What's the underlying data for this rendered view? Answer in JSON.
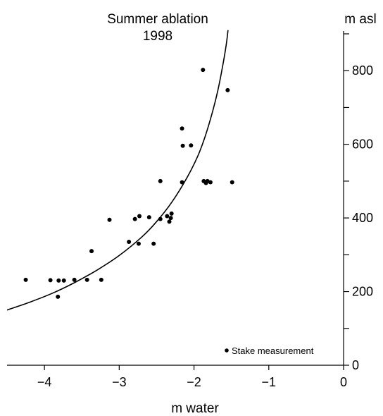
{
  "chart_data": {
    "type": "scatter",
    "title": "Summer ablation",
    "subtitle": "1998",
    "xlabel": "m water",
    "ylabel": "m asl",
    "xlim": [
      -4.5,
      0
    ],
    "ylim": [
      0,
      900
    ],
    "x_ticks": [
      -4,
      -3,
      -2,
      -1,
      0
    ],
    "y_ticks": [
      0,
      200,
      400,
      600,
      800
    ],
    "y_minor_ticks": [
      100,
      300,
      500,
      700,
      900
    ],
    "grid": false,
    "legend": {
      "placement": "bottom-right",
      "label": "Stake measurement",
      "marker": "dot"
    },
    "marker_color": "#000000",
    "series": [
      {
        "name": "Stake measurement",
        "points": [
          {
            "x": -4.25,
            "y": 232
          },
          {
            "x": -3.92,
            "y": 231
          },
          {
            "x": -3.81,
            "y": 230
          },
          {
            "x": -3.74,
            "y": 230
          },
          {
            "x": -3.6,
            "y": 232
          },
          {
            "x": -3.43,
            "y": 232
          },
          {
            "x": -3.24,
            "y": 232
          },
          {
            "x": -3.82,
            "y": 186
          },
          {
            "x": -3.37,
            "y": 310
          },
          {
            "x": -3.13,
            "y": 395
          },
          {
            "x": -2.87,
            "y": 335
          },
          {
            "x": -2.79,
            "y": 397
          },
          {
            "x": -2.73,
            "y": 405
          },
          {
            "x": -2.74,
            "y": 330
          },
          {
            "x": -2.6,
            "y": 402
          },
          {
            "x": -2.54,
            "y": 330
          },
          {
            "x": -2.45,
            "y": 397
          },
          {
            "x": -2.45,
            "y": 500
          },
          {
            "x": -2.36,
            "y": 405
          },
          {
            "x": -2.33,
            "y": 390
          },
          {
            "x": -2.3,
            "y": 412
          },
          {
            "x": -2.31,
            "y": 400
          },
          {
            "x": -2.16,
            "y": 643
          },
          {
            "x": -2.15,
            "y": 596
          },
          {
            "x": -2.16,
            "y": 497
          },
          {
            "x": -2.04,
            "y": 597
          },
          {
            "x": -1.88,
            "y": 802
          },
          {
            "x": -1.87,
            "y": 500
          },
          {
            "x": -1.84,
            "y": 495
          },
          {
            "x": -1.82,
            "y": 500
          },
          {
            "x": -1.78,
            "y": 497
          },
          {
            "x": -1.55,
            "y": 747
          },
          {
            "x": -1.49,
            "y": 497
          }
        ]
      }
    ],
    "fit_curve": {
      "type": "curve",
      "points": [
        {
          "x": -4.5,
          "y": 150
        },
        {
          "x": -4.2,
          "y": 171
        },
        {
          "x": -3.9,
          "y": 195
        },
        {
          "x": -3.6,
          "y": 224
        },
        {
          "x": -3.3,
          "y": 258
        },
        {
          "x": -3.0,
          "y": 298
        },
        {
          "x": -2.7,
          "y": 348
        },
        {
          "x": -2.5,
          "y": 390
        },
        {
          "x": -2.3,
          "y": 442
        },
        {
          "x": -2.1,
          "y": 507
        },
        {
          "x": -1.95,
          "y": 568
        },
        {
          "x": -1.85,
          "y": 622
        },
        {
          "x": -1.75,
          "y": 690
        },
        {
          "x": -1.68,
          "y": 747
        },
        {
          "x": -1.62,
          "y": 809
        },
        {
          "x": -1.57,
          "y": 869
        },
        {
          "x": -1.545,
          "y": 910
        }
      ]
    }
  }
}
